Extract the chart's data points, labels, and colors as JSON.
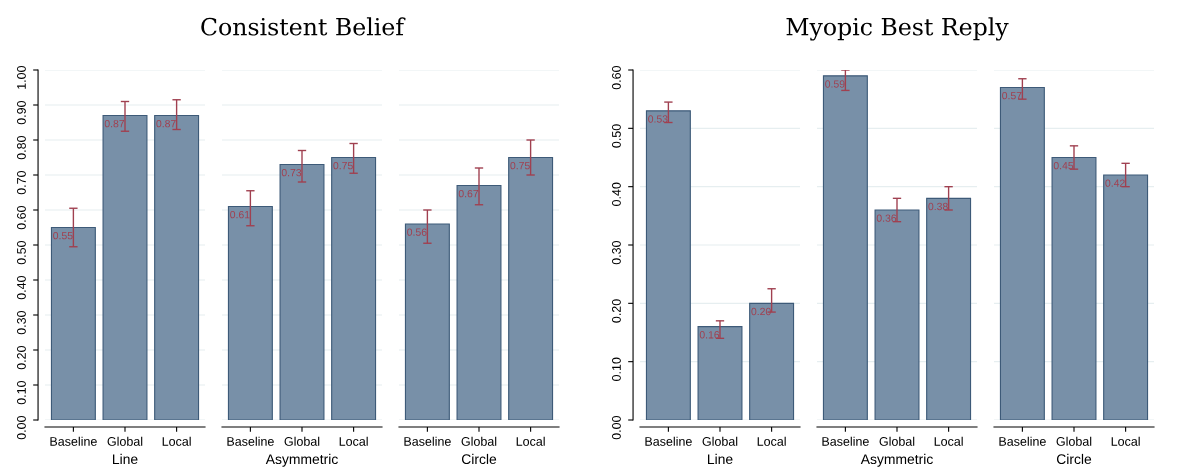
{
  "chart_data": [
    {
      "type": "bar",
      "xlabel": "Line",
      "categories": [
        "Baseline",
        "Global",
        "Local"
      ],
      "values": [
        0.55,
        0.87,
        0.87
      ],
      "value_labels": [
        "0.55",
        "0.87",
        "0.87"
      ],
      "errors": [
        [
          0.495,
          0.605
        ],
        [
          0.825,
          0.91
        ],
        [
          0.83,
          0.915
        ]
      ],
      "color": "#7890a8",
      "ylim": [
        0,
        1
      ],
      "yticks": [
        {
          "value": 0,
          "label": "0.00"
        },
        {
          "value": 0.1,
          "label": "0.10"
        },
        {
          "value": 0.2,
          "label": "0.20"
        },
        {
          "value": 0.3,
          "label": "0.30"
        },
        {
          "value": 0.4,
          "label": "0.40"
        },
        {
          "value": 0.5,
          "label": "0.50"
        },
        {
          "value": 0.6,
          "label": "0.60"
        },
        {
          "value": 0.7,
          "label": "0.70"
        },
        {
          "value": 0.8,
          "label": "0.80"
        },
        {
          "value": 0.9,
          "label": "0.90"
        },
        {
          "value": 1,
          "label": "1.00"
        }
      ],
      "grid": "y"
    },
    {
      "type": "bar",
      "title": "Consistent Belief",
      "xlabel": "Asymmetric",
      "categories": [
        "Baseline",
        "Global",
        "Local"
      ],
      "values": [
        0.61,
        0.73,
        0.75
      ],
      "value_labels": [
        "0.61",
        "0.73",
        "0.75"
      ],
      "errors": [
        [
          0.555,
          0.655
        ],
        [
          0.68,
          0.77
        ],
        [
          0.705,
          0.79
        ]
      ],
      "color": "#7890a8",
      "ylim": [
        0,
        1
      ],
      "yticks": [
        0,
        0.1,
        0.2,
        0.3,
        0.4,
        0.5,
        0.6,
        0.7,
        0.8,
        0.9,
        1
      ],
      "tick_labels": "x",
      "grid": "y"
    },
    {
      "type": "bar",
      "xlabel": "Circle",
      "categories": [
        "Baseline",
        "Global",
        "Local"
      ],
      "values": [
        0.56,
        0.67,
        0.75
      ],
      "value_labels": [
        "0.56",
        "0.67",
        "0.75"
      ],
      "errors": [
        [
          0.505,
          0.6
        ],
        [
          0.615,
          0.72
        ],
        [
          0.7,
          0.8
        ]
      ],
      "color": "#7890a8",
      "ylim": [
        0,
        1
      ],
      "yticks": [
        0,
        0.1,
        0.2,
        0.3,
        0.4,
        0.5,
        0.6,
        0.7,
        0.8,
        0.9,
        1
      ],
      "tick_labels": "x",
      "grid": "y"
    },
    {
      "type": "bar",
      "xlabel": "Line",
      "categories": [
        "Baseline",
        "Global",
        "Local"
      ],
      "values": [
        0.53,
        0.16,
        0.2
      ],
      "value_labels": [
        "0.53",
        "0.16",
        "0.20"
      ],
      "errors": [
        [
          0.51,
          0.545
        ],
        [
          0.14,
          0.17
        ],
        [
          0.185,
          0.225
        ]
      ],
      "color": "#7890a8",
      "ylim": [
        0,
        0.6
      ],
      "yticks": [
        {
          "value": 0,
          "label": "0.00"
        },
        {
          "value": 0.1,
          "label": "0.10"
        },
        {
          "value": 0.2,
          "label": "0.20"
        },
        {
          "value": 0.3,
          "label": "0.30"
        },
        {
          "value": 0.4,
          "label": "0.40"
        },
        {
          "value": 0.5,
          "label": "0.50"
        },
        {
          "value": 0.6,
          "label": "0.60"
        }
      ],
      "grid": "y"
    },
    {
      "type": "bar",
      "title": "Myopic Best Reply",
      "xlabel": "Asymmetric",
      "categories": [
        "Baseline",
        "Global",
        "Local"
      ],
      "values": [
        0.59,
        0.36,
        0.38
      ],
      "value_labels": [
        "0.59",
        "0.36",
        "0.38"
      ],
      "errors": [
        [
          0.565,
          0.6
        ],
        [
          0.34,
          0.38
        ],
        [
          0.36,
          0.4
        ]
      ],
      "color": "#7890a8",
      "ylim": [
        0,
        0.6
      ],
      "yticks": [
        0,
        0.1,
        0.2,
        0.3,
        0.4,
        0.5,
        0.6
      ],
      "tick_labels": "x",
      "grid": "y"
    },
    {
      "type": "bar",
      "xlabel": "Circle",
      "categories": [
        "Baseline",
        "Global",
        "Local"
      ],
      "values": [
        0.57,
        0.45,
        0.42
      ],
      "value_labels": [
        "0.57",
        "0.45",
        "0.42"
      ],
      "errors": [
        [
          0.55,
          0.585
        ],
        [
          0.43,
          0.47
        ],
        [
          0.4,
          0.44
        ]
      ],
      "color": "#7890a8",
      "ylim": [
        0,
        0.6
      ],
      "yticks": [
        0,
        0.1,
        0.2,
        0.3,
        0.4,
        0.5,
        0.6
      ],
      "tick_labels": "x",
      "grid": "y"
    }
  ]
}
